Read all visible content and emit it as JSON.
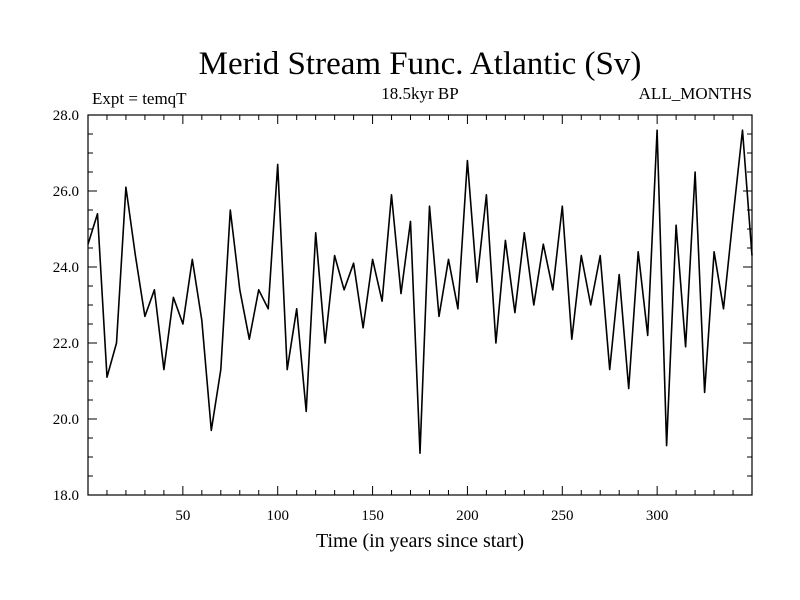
{
  "chart_data": {
    "type": "line",
    "title": "Merid Stream Func. Atlantic (Sv)",
    "subtitle_left": "Expt = temqT",
    "subtitle_center": "18.5kyr BP",
    "subtitle_right": "ALL_MONTHS",
    "xlabel": "Time (in years since start)",
    "ylabel": "",
    "xlim": [
      0,
      350
    ],
    "ylim": [
      18.0,
      28.0
    ],
    "x_ticks": [
      50,
      100,
      150,
      200,
      250,
      300
    ],
    "x_tick_labels": [
      "50",
      "100",
      "150",
      "200",
      "250",
      "300"
    ],
    "y_ticks": [
      18,
      20,
      22,
      24,
      26,
      28
    ],
    "y_tick_labels": [
      "18.0",
      "20.0",
      "22.0",
      "24.0",
      "26.0",
      "28.0"
    ],
    "grid": false,
    "line_color": "#000000",
    "series": [
      {
        "x": [
          0,
          5,
          10,
          15,
          20,
          25,
          30,
          35,
          40,
          45,
          50,
          55,
          60,
          65,
          70,
          75,
          80,
          85,
          90,
          95,
          100,
          105,
          110,
          115,
          120,
          125,
          130,
          135,
          140,
          145,
          150,
          155,
          160,
          165,
          170,
          175,
          180,
          185,
          190,
          195,
          200,
          205,
          210,
          215,
          220,
          225,
          230,
          235,
          240,
          245,
          250,
          255,
          260,
          265,
          270,
          275,
          280,
          285,
          290,
          295,
          300,
          305,
          310,
          315,
          320,
          325,
          330,
          335,
          340,
          345,
          350
        ],
        "values": [
          24.6,
          25.4,
          21.1,
          22.0,
          26.1,
          24.3,
          22.7,
          23.4,
          21.3,
          23.2,
          22.5,
          24.2,
          22.6,
          19.7,
          21.3,
          25.5,
          23.4,
          22.1,
          23.4,
          22.9,
          26.7,
          21.3,
          22.9,
          20.2,
          24.9,
          22.0,
          24.3,
          23.4,
          24.1,
          22.4,
          24.2,
          23.1,
          25.9,
          23.3,
          25.2,
          19.1,
          25.6,
          22.7,
          24.2,
          22.9,
          26.8,
          23.6,
          25.9,
          22.0,
          24.7,
          22.8,
          24.9,
          23.0,
          24.6,
          23.4,
          25.6,
          22.1,
          24.3,
          23.0,
          24.3,
          21.3,
          23.8,
          20.8,
          24.4,
          22.2,
          27.6,
          19.3,
          25.1,
          21.9,
          26.5,
          20.7,
          24.4,
          22.9,
          25.3,
          27.6,
          24.3
        ]
      }
    ]
  }
}
